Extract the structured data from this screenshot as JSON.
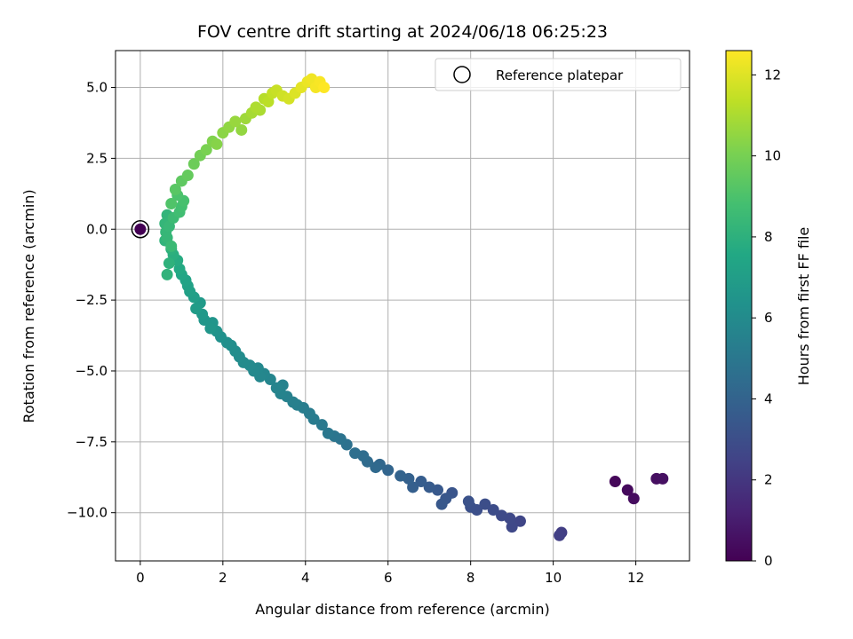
{
  "chart_data": {
    "type": "scatter",
    "title": "FOV centre drift starting at 2024/06/18 06:25:23",
    "xlabel": "Angular distance from reference (arcmin)",
    "ylabel": "Rotation from reference (arcmin)",
    "xlim": [
      -0.6,
      13.3
    ],
    "ylim": [
      -11.7,
      6.3
    ],
    "x_ticks": [
      0,
      2,
      4,
      6,
      8,
      10,
      12
    ],
    "y_ticks": [
      -10.0,
      -7.5,
      -5.0,
      -2.5,
      0.0,
      2.5,
      5.0
    ],
    "x_tick_labels": [
      "0",
      "2",
      "4",
      "6",
      "8",
      "10",
      "12"
    ],
    "y_tick_labels": [
      "−10.0",
      "−7.5",
      "−5.0",
      "−2.5",
      "0.0",
      "2.5",
      "5.0"
    ],
    "grid": true,
    "colormap": "viridis",
    "colorbar": {
      "label": "Hours from first FF file",
      "range": [
        0,
        12.6
      ],
      "ticks": [
        0,
        2,
        4,
        6,
        8,
        10,
        12
      ],
      "tick_labels": [
        "0",
        "2",
        "4",
        "6",
        "8",
        "10",
        "12"
      ]
    },
    "legend": {
      "position": "top-right",
      "entries": [
        "Reference platepar"
      ]
    },
    "reference_point": {
      "x": 0.0,
      "y": 0.0,
      "color_value": 0.0
    },
    "series": [
      {
        "x": [
          11.5,
          11.8,
          11.95,
          12.5,
          12.65,
          10.2,
          10.15,
          9.2,
          9.0,
          8.95,
          8.75,
          8.55,
          8.35,
          8.15,
          8.0,
          7.95,
          7.55,
          7.4,
          7.3,
          7.2,
          7.0,
          6.8,
          6.6,
          6.5,
          6.3,
          6.0,
          5.8,
          5.7,
          5.5,
          5.4,
          5.2,
          5.0,
          4.85,
          4.7,
          4.55,
          4.4,
          4.2,
          4.1,
          3.95,
          3.8,
          3.7,
          3.55,
          3.45,
          3.4,
          3.3,
          3.15,
          3.0,
          2.9,
          2.85,
          2.75,
          2.65,
          2.5,
          2.4,
          2.3,
          2.2,
          2.1,
          1.95,
          1.85,
          1.75,
          1.7,
          1.55,
          1.5,
          1.45,
          1.35,
          1.3,
          1.2,
          1.15,
          1.1,
          1.0,
          0.95,
          0.9,
          0.8,
          0.75,
          0.7,
          0.65,
          0.6,
          0.62,
          0.7,
          0.8,
          0.95,
          1.0,
          1.05,
          0.9,
          0.75,
          0.65,
          0.6,
          0.65,
          0.75,
          0.85,
          1.0,
          1.15,
          1.3,
          1.45,
          1.6,
          1.75,
          1.85,
          2.0,
          2.15,
          2.3,
          2.45,
          2.55,
          2.7,
          2.8,
          2.9,
          3.0,
          3.1,
          3.2,
          3.3,
          3.45,
          3.6,
          3.75,
          3.9,
          4.05,
          4.15,
          4.25,
          4.35,
          4.45
        ],
        "y": [
          -8.9,
          -9.2,
          -9.5,
          -8.8,
          -8.8,
          -10.7,
          -10.8,
          -10.3,
          -10.5,
          -10.2,
          -10.1,
          -9.9,
          -9.7,
          -9.9,
          -9.8,
          -9.6,
          -9.3,
          -9.5,
          -9.7,
          -9.2,
          -9.1,
          -8.9,
          -9.1,
          -8.8,
          -8.7,
          -8.5,
          -8.3,
          -8.4,
          -8.2,
          -8.0,
          -7.9,
          -7.6,
          -7.4,
          -7.3,
          -7.2,
          -6.9,
          -6.7,
          -6.5,
          -6.3,
          -6.2,
          -6.1,
          -5.9,
          -5.5,
          -5.8,
          -5.6,
          -5.3,
          -5.1,
          -5.2,
          -4.9,
          -5.0,
          -4.8,
          -4.7,
          -4.5,
          -4.3,
          -4.1,
          -4.0,
          -3.8,
          -3.6,
          -3.3,
          -3.5,
          -3.2,
          -3.0,
          -2.6,
          -2.8,
          -2.4,
          -2.2,
          -2.0,
          -1.8,
          -1.6,
          -1.4,
          -1.1,
          -0.9,
          -0.7,
          -1.2,
          -1.6,
          -0.4,
          -0.1,
          0.1,
          0.4,
          0.6,
          0.8,
          1.0,
          1.2,
          0.9,
          0.5,
          0.2,
          -0.3,
          -0.6,
          1.4,
          1.7,
          1.9,
          2.3,
          2.6,
          2.8,
          3.1,
          3.0,
          3.4,
          3.6,
          3.8,
          3.5,
          3.9,
          4.1,
          4.3,
          4.2,
          4.6,
          4.5,
          4.8,
          4.9,
          4.7,
          4.6,
          4.8,
          5.0,
          5.2,
          5.3,
          5.0,
          5.2,
          5.0
        ],
        "c": [
          0.2,
          0.3,
          0.4,
          0.5,
          0.55,
          2.3,
          2.35,
          2.6,
          2.7,
          2.75,
          2.8,
          2.9,
          3.0,
          3.05,
          3.1,
          3.15,
          3.3,
          3.4,
          3.45,
          3.5,
          3.6,
          3.7,
          3.8,
          3.9,
          4.0,
          4.1,
          4.2,
          4.3,
          4.4,
          4.5,
          4.6,
          4.7,
          4.8,
          4.9,
          5.0,
          5.1,
          5.2,
          5.25,
          5.3,
          5.4,
          5.45,
          5.5,
          5.55,
          5.6,
          5.65,
          5.7,
          5.75,
          5.8,
          5.85,
          5.9,
          5.95,
          6.0,
          6.05,
          6.1,
          6.15,
          6.2,
          6.3,
          6.4,
          6.5,
          6.55,
          6.6,
          6.7,
          6.8,
          6.9,
          7.0,
          7.1,
          7.2,
          7.3,
          7.45,
          7.6,
          7.75,
          7.9,
          8.0,
          8.05,
          8.1,
          8.15,
          8.3,
          8.4,
          8.55,
          8.7,
          8.8,
          8.9,
          9.0,
          9.1,
          8.2,
          8.25,
          8.35,
          8.5,
          9.3,
          9.45,
          9.6,
          9.75,
          9.9,
          10.05,
          10.2,
          10.3,
          10.4,
          10.5,
          10.65,
          10.55,
          10.75,
          10.9,
          11.05,
          11.0,
          11.2,
          11.3,
          11.45,
          11.55,
          11.7,
          11.8,
          11.95,
          12.1,
          12.25,
          12.35,
          12.45,
          12.5,
          12.6
        ]
      }
    ]
  }
}
